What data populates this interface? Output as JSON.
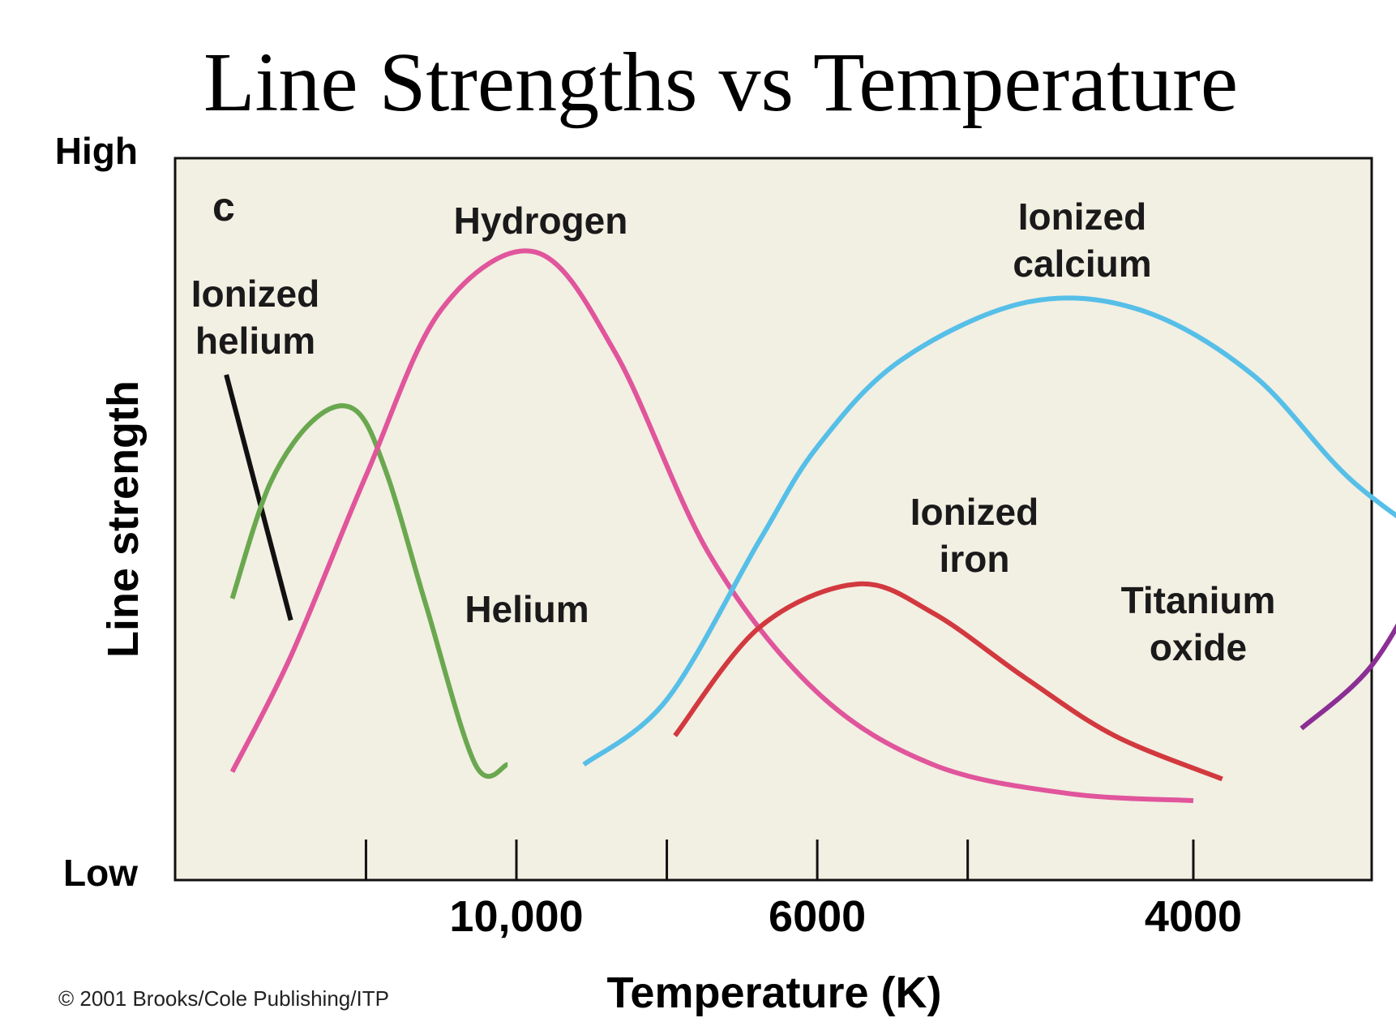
{
  "chart_data": {
    "type": "line",
    "title": "Line Strengths vs Temperature",
    "xlabel": "Temperature (K)",
    "ylabel": "Line strength",
    "y_high_label": "High",
    "y_low_label": "Low",
    "panel_letter": "c",
    "x_scale": "reciprocal",
    "xlim": [
      30000,
      3000
    ],
    "ylim": [
      0,
      100
    ],
    "x_ticks": [
      15000,
      10000,
      7500,
      6000,
      5000,
      4000
    ],
    "x_tick_labels": [
      {
        "value": 10000,
        "label": "10,000"
      },
      {
        "value": 6000,
        "label": "6000"
      },
      {
        "value": 4000,
        "label": "4000"
      }
    ],
    "grid": false,
    "legend": "none",
    "series": [
      {
        "name": "Ionized helium",
        "label_lines": [
          "Ionized",
          "helium"
        ],
        "color": "#111111",
        "x": [
          28000,
          20000
        ],
        "y": [
          70,
          36
        ]
      },
      {
        "name": "Helium",
        "label_lines": [
          "Helium"
        ],
        "color": "#6aa84f",
        "x": [
          27000,
          22000,
          18000,
          15500,
          14000,
          12500,
          11000,
          10200
        ],
        "y": [
          39,
          55,
          64,
          65,
          56,
          38,
          16,
          16
        ]
      },
      {
        "name": "Hydrogen",
        "label_lines": [
          "Hydrogen"
        ],
        "color": "#e0559b",
        "x": [
          27000,
          20000,
          15000,
          12000,
          9600,
          8200,
          7000,
          6000,
          5200,
          4500,
          4000
        ],
        "y": [
          15,
          31,
          56,
          79,
          87,
          73,
          45,
          26,
          16,
          12,
          11
        ]
      },
      {
        "name": "Ionized calcium",
        "label_lines": [
          "Ionized",
          "calcium"
        ],
        "color": "#56bfe8",
        "x": [
          8700,
          7500,
          6500,
          6000,
          5400,
          4700,
          4200,
          3800,
          3500,
          3200
        ],
        "y": [
          16,
          25,
          47,
          60,
          72,
          80,
          79,
          70,
          55,
          43
        ]
      },
      {
        "name": "Ionized iron",
        "label_lines": [
          "Ionized",
          "iron"
        ],
        "color": "#d2393f",
        "x": [
          7400,
          6500,
          5700,
          5200,
          4700,
          4300,
          3900
        ],
        "y": [
          20,
          35,
          41,
          37,
          28,
          20,
          14
        ]
      },
      {
        "name": "Titanium oxide",
        "label_lines": [
          "Titanium",
          "oxide"
        ],
        "color": "#8b2f94",
        "x": [
          3650,
          3450,
          3300,
          3200
        ],
        "y": [
          21,
          30,
          45,
          61
        ]
      }
    ],
    "copyright": "© 2001 Brooks/Cole Publishing/ITP"
  }
}
